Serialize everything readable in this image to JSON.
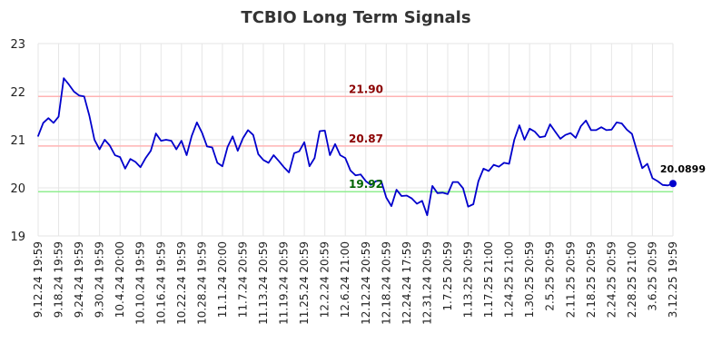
{
  "chart_data": {
    "type": "line",
    "title": "TCBIO Long Term Signals",
    "xlabel": "",
    "ylabel": "",
    "ylim": [
      19,
      23
    ],
    "yticks": [
      19,
      20,
      21,
      22,
      23
    ],
    "grid": true,
    "x_tick_labels": [
      "9.12.24 19:59",
      "9.18.24 19:59",
      "9.24.24 19:59",
      "9.30.24 19:59",
      "10.4.24 20:00",
      "10.10.24 19:59",
      "10.16.24 19:59",
      "10.22.24 19:59",
      "10.28.24 19:59",
      "11.1.24 20:00",
      "11.7.24 20:59",
      "11.13.24 20:59",
      "11.19.24 20:59",
      "11.25.24 20:59",
      "12.2.24 20:59",
      "12.6.24 21:00",
      "12.12.24 20:59",
      "12.18.24 20:59",
      "12.24.24 17:59",
      "12.31.24 20:59",
      "1.7.25 20:59",
      "1.13.25 20:59",
      "1.17.25 21:00",
      "1.24.25 21:00",
      "1.30.25 20:59",
      "2.5.25 20:59",
      "2.11.25 20:59",
      "2.18.25 20:59",
      "2.24.25 20:59",
      "2.28.25 21:00",
      "3.6.25 20:59",
      "3.12.25 19:59"
    ],
    "values": [
      21.08,
      21.35,
      21.45,
      21.35,
      21.48,
      22.28,
      22.15,
      22.0,
      21.92,
      21.9,
      21.5,
      21.0,
      20.8,
      21.0,
      20.88,
      20.68,
      20.64,
      20.4,
      20.6,
      20.54,
      20.43,
      20.62,
      20.77,
      21.13,
      20.98,
      21.0,
      20.98,
      20.8,
      20.98,
      20.68,
      21.08,
      21.36,
      21.15,
      20.86,
      20.84,
      20.52,
      20.45,
      20.85,
      21.07,
      20.77,
      21.03,
      21.2,
      21.1,
      20.7,
      20.58,
      20.52,
      20.68,
      20.56,
      20.43,
      20.32,
      20.72,
      20.76,
      20.95,
      20.45,
      20.62,
      21.18,
      21.19,
      20.68,
      20.91,
      20.68,
      20.62,
      20.36,
      20.26,
      20.28,
      20.14,
      20.06,
      20.14,
      20.15,
      19.8,
      19.62,
      19.96,
      19.83,
      19.84,
      19.78,
      19.67,
      19.73,
      19.43,
      20.04,
      19.89,
      19.9,
      19.87,
      20.12,
      20.12,
      19.99,
      19.61,
      19.66,
      20.14,
      20.4,
      20.35,
      20.48,
      20.44,
      20.52,
      20.5,
      21.0,
      21.3,
      21.0,
      21.23,
      21.17,
      21.05,
      21.07,
      21.32,
      21.17,
      21.02,
      21.1,
      21.14,
      21.04,
      21.28,
      21.4,
      21.2,
      21.2,
      21.26,
      21.2,
      21.21,
      21.36,
      21.34,
      21.21,
      21.12,
      20.76,
      20.41,
      20.5,
      20.2,
      20.14,
      20.06,
      20.05,
      20.0899
    ],
    "series": [
      {
        "name": "",
        "color": "#0000cc"
      }
    ],
    "levels": [
      {
        "value": 21.9,
        "label": "21.90",
        "line_color": "#ffb3b3",
        "label_color": "#8b0000"
      },
      {
        "value": 20.87,
        "label": "20.87",
        "line_color": "#ffb3b3",
        "label_color": "#8b0000"
      },
      {
        "value": 19.92,
        "label": "19.92",
        "line_color": "#90ee90",
        "label_color": "#006400"
      }
    ],
    "last_value": {
      "value": 20.0899,
      "label": "20.0899"
    }
  }
}
